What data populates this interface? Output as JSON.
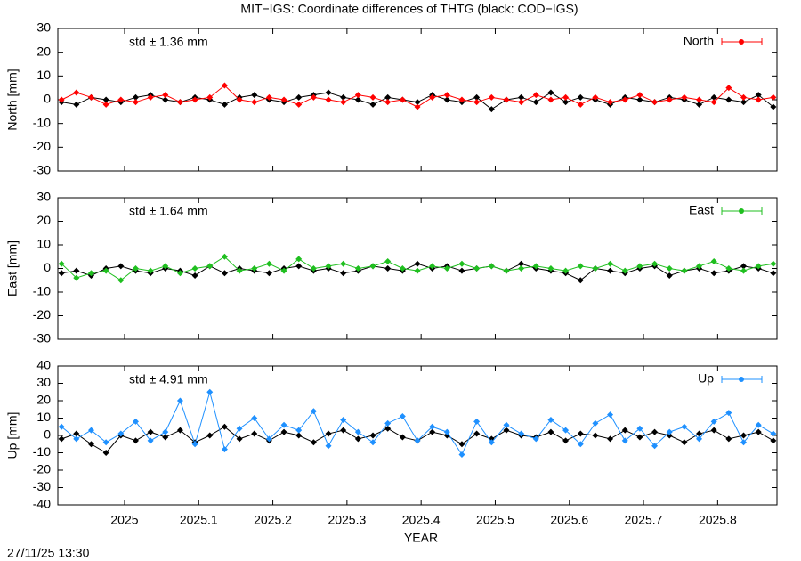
{
  "title": "MIT−IGS: Coordinate differences of THTG (black: COD−IGS)",
  "timestamp": "27/11/25 13:30",
  "chart_data": [
    {
      "type": "line",
      "ylabel": "North [mm]",
      "annotation": "std ± 1.36 mm",
      "xlim": [
        2024.91,
        2025.88
      ],
      "ylim": [
        -30,
        30
      ],
      "yticks": [
        -30,
        -20,
        -10,
        0,
        10,
        20,
        30
      ],
      "x": [
        2024.915,
        2024.935,
        2024.955,
        2024.975,
        2024.995,
        2025.015,
        2025.035,
        2025.055,
        2025.075,
        2025.095,
        2025.115,
        2025.135,
        2025.155,
        2025.175,
        2025.195,
        2025.215,
        2025.235,
        2025.255,
        2025.275,
        2025.295,
        2025.315,
        2025.335,
        2025.355,
        2025.375,
        2025.395,
        2025.415,
        2025.435,
        2025.455,
        2025.475,
        2025.495,
        2025.515,
        2025.535,
        2025.555,
        2025.575,
        2025.595,
        2025.615,
        2025.635,
        2025.655,
        2025.675,
        2025.695,
        2025.715,
        2025.735,
        2025.755,
        2025.775,
        2025.795,
        2025.815,
        2025.835,
        2025.855,
        2025.875
      ],
      "series": [
        {
          "color": "#000000",
          "values": [
            -1,
            -2,
            1,
            0,
            -1,
            1,
            2,
            0,
            -1,
            1,
            0,
            -2,
            1,
            2,
            0,
            -1,
            1,
            2,
            3,
            1,
            0,
            -2,
            1,
            0,
            -1,
            2,
            0,
            -1,
            1,
            -4,
            0,
            1,
            -1,
            3,
            -1,
            1,
            0,
            -2,
            1,
            0,
            -1,
            1,
            0,
            -2,
            1,
            0,
            -1,
            2,
            -3
          ]
        },
        {
          "name": "North",
          "color": "#ff0000",
          "values": [
            0,
            3,
            1,
            -2,
            0,
            -1,
            1,
            2,
            -1,
            0,
            1,
            6,
            0,
            -1,
            1,
            0,
            -2,
            1,
            0,
            -1,
            2,
            1,
            -1,
            0,
            -3,
            1,
            2,
            0,
            -1,
            1,
            0,
            -1,
            2,
            0,
            1,
            -2,
            1,
            -1,
            0,
            2,
            -1,
            0,
            1,
            0,
            -1,
            5,
            1,
            0,
            1
          ]
        }
      ]
    },
    {
      "type": "line",
      "ylabel": "East [mm]",
      "annotation": "std ± 1.64 mm",
      "xlim": [
        2024.91,
        2025.88
      ],
      "ylim": [
        -30,
        30
      ],
      "yticks": [
        -30,
        -20,
        -10,
        0,
        10,
        20,
        30
      ],
      "x": [
        2024.915,
        2024.935,
        2024.955,
        2024.975,
        2024.995,
        2025.015,
        2025.035,
        2025.055,
        2025.075,
        2025.095,
        2025.115,
        2025.135,
        2025.155,
        2025.175,
        2025.195,
        2025.215,
        2025.235,
        2025.255,
        2025.275,
        2025.295,
        2025.315,
        2025.335,
        2025.355,
        2025.375,
        2025.395,
        2025.415,
        2025.435,
        2025.455,
        2025.475,
        2025.495,
        2025.515,
        2025.535,
        2025.555,
        2025.575,
        2025.595,
        2025.615,
        2025.635,
        2025.655,
        2025.675,
        2025.695,
        2025.715,
        2025.735,
        2025.755,
        2025.775,
        2025.795,
        2025.815,
        2025.835,
        2025.855,
        2025.875
      ],
      "series": [
        {
          "color": "#000000",
          "values": [
            -2,
            -1,
            -3,
            0,
            1,
            -1,
            -2,
            0,
            -1,
            -3,
            1,
            -2,
            0,
            -1,
            -2,
            0,
            1,
            -1,
            0,
            -2,
            -1,
            1,
            0,
            -1,
            2,
            0,
            1,
            -1,
            0,
            1,
            -1,
            2,
            0,
            -1,
            -2,
            -5,
            0,
            -1,
            -2,
            0,
            1,
            -3,
            -1,
            0,
            -2,
            -1,
            1,
            0,
            -2
          ]
        },
        {
          "name": "East",
          "color": "#1fbf1f",
          "values": [
            2,
            -4,
            -2,
            -1,
            -5,
            0,
            -1,
            1,
            -2,
            0,
            1,
            5,
            -1,
            0,
            2,
            -1,
            4,
            0,
            1,
            2,
            0,
            1,
            3,
            0,
            -1,
            1,
            0,
            2,
            0,
            1,
            -1,
            0,
            1,
            0,
            -1,
            1,
            0,
            2,
            -1,
            1,
            2,
            0,
            -1,
            1,
            3,
            0,
            -1,
            1,
            2
          ]
        }
      ]
    },
    {
      "type": "line",
      "ylabel": "Up [mm]",
      "annotation": "std ± 4.91 mm",
      "xlabel": "YEAR",
      "xlim": [
        2024.91,
        2025.88
      ],
      "ylim": [
        -40,
        40
      ],
      "yticks": [
        -40,
        -30,
        -20,
        -10,
        0,
        10,
        20,
        30,
        40
      ],
      "xticks": [
        2025,
        2025.1,
        2025.2,
        2025.3,
        2025.4,
        2025.5,
        2025.6,
        2025.7,
        2025.8
      ],
      "x": [
        2024.915,
        2024.935,
        2024.955,
        2024.975,
        2024.995,
        2025.015,
        2025.035,
        2025.055,
        2025.075,
        2025.095,
        2025.115,
        2025.135,
        2025.155,
        2025.175,
        2025.195,
        2025.215,
        2025.235,
        2025.255,
        2025.275,
        2025.295,
        2025.315,
        2025.335,
        2025.355,
        2025.375,
        2025.395,
        2025.415,
        2025.435,
        2025.455,
        2025.475,
        2025.495,
        2025.515,
        2025.535,
        2025.555,
        2025.575,
        2025.595,
        2025.615,
        2025.635,
        2025.655,
        2025.675,
        2025.695,
        2025.715,
        2025.735,
        2025.755,
        2025.775,
        2025.795,
        2025.815,
        2025.835,
        2025.855,
        2025.875
      ],
      "series": [
        {
          "color": "#000000",
          "values": [
            -2,
            1,
            -5,
            -10,
            0,
            -3,
            2,
            -1,
            3,
            -4,
            0,
            5,
            -2,
            1,
            -3,
            2,
            0,
            -4,
            1,
            3,
            -2,
            0,
            4,
            -1,
            -3,
            2,
            0,
            -5,
            1,
            -2,
            3,
            0,
            -1,
            2,
            -3,
            1,
            0,
            -2,
            3,
            -1,
            2,
            0,
            -4,
            1,
            3,
            -2,
            0,
            2,
            -3
          ]
        },
        {
          "name": "Up",
          "color": "#1e90ff",
          "values": [
            5,
            -2,
            3,
            -4,
            1,
            8,
            -3,
            2,
            20,
            -5,
            25,
            -8,
            4,
            10,
            -2,
            6,
            3,
            14,
            -6,
            9,
            2,
            -4,
            7,
            11,
            -3,
            5,
            2,
            -11,
            8,
            -4,
            6,
            1,
            -2,
            9,
            3,
            -5,
            7,
            12,
            -3,
            4,
            -6,
            2,
            5,
            -2,
            8,
            13,
            -4,
            6,
            1
          ]
        }
      ]
    }
  ]
}
